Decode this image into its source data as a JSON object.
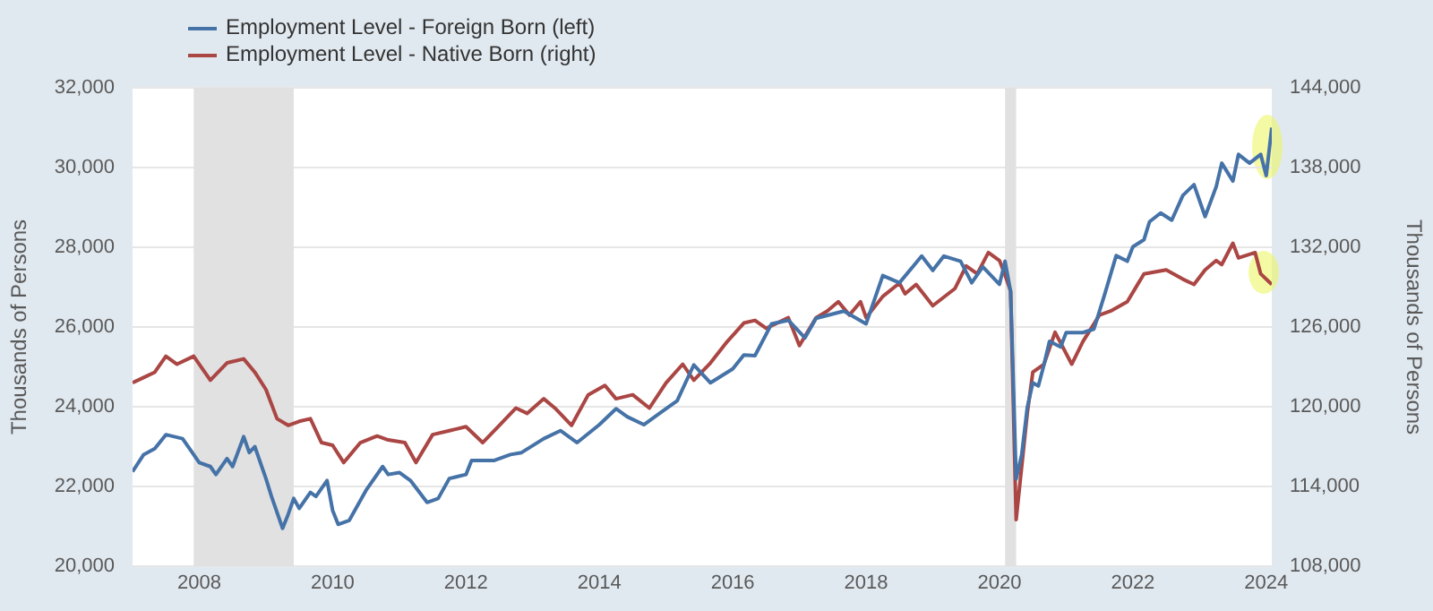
{
  "chart_data": {
    "type": "line",
    "xlim": [
      "2007-01",
      "2024-02"
    ],
    "xticks": [
      "2008",
      "2010",
      "2012",
      "2014",
      "2016",
      "2018",
      "2020",
      "2022",
      "2024"
    ],
    "ylim": [
      20000,
      32000
    ],
    "yticks": [
      {
        "value": 20000,
        "label": "20,000"
      },
      {
        "value": 22000,
        "label": "22,000"
      },
      {
        "value": 24000,
        "label": "24,000"
      },
      {
        "value": 26000,
        "label": "26,000"
      },
      {
        "value": 28000,
        "label": "28,000"
      },
      {
        "value": 30000,
        "label": "30,000"
      },
      {
        "value": 32000,
        "label": "32,000"
      }
    ],
    "y2lim": [
      108000,
      144000
    ],
    "y2ticks": [
      {
        "value": 108000,
        "label": "108,000"
      },
      {
        "value": 114000,
        "label": "114,000"
      },
      {
        "value": 120000,
        "label": "120,000"
      },
      {
        "value": 126000,
        "label": "126,000"
      },
      {
        "value": 132000,
        "label": "132,000"
      },
      {
        "value": 138000,
        "label": "138,000"
      },
      {
        "value": 144000,
        "label": "144,000"
      }
    ],
    "ylabel": "Thousands of Persons",
    "y2label": "Thousands of Persons",
    "grid": "y",
    "legend": "top left",
    "bands": [
      {
        "axis": "x",
        "from": "2007-12",
        "to": "2009-06",
        "color": "#e1e1e1"
      },
      {
        "axis": "x",
        "from": "2020-02",
        "to": "2020-04",
        "color": "#e1e1e1"
      }
    ],
    "series": [
      {
        "name": "Employment Level - Foreign Born (left)",
        "color": "#4572a7",
        "axis": "y",
        "x": [
          "2007-01",
          "2007-03",
          "2007-05",
          "2007-07",
          "2007-10",
          "2008-01",
          "2008-03",
          "2008-04",
          "2008-06",
          "2008-07",
          "2008-09",
          "2008-10",
          "2008-11",
          "2009-01",
          "2009-02",
          "2009-04",
          "2009-05",
          "2009-06",
          "2009-07",
          "2009-09",
          "2009-10",
          "2009-12",
          "2010-01",
          "2010-02",
          "2010-04",
          "2010-07",
          "2010-10",
          "2010-11",
          "2011-01",
          "2011-03",
          "2011-06",
          "2011-08",
          "2011-10",
          "2012-01",
          "2012-02",
          "2012-06",
          "2012-09",
          "2012-11",
          "2013-03",
          "2013-06",
          "2013-09",
          "2014-01",
          "2014-04",
          "2014-06",
          "2014-09",
          "2014-12",
          "2015-03",
          "2015-06",
          "2015-09",
          "2016-01",
          "2016-03",
          "2016-05",
          "2016-08",
          "2016-11",
          "2017-02",
          "2017-04",
          "2017-09",
          "2018-01",
          "2018-04",
          "2018-07",
          "2018-11",
          "2019-01",
          "2019-03",
          "2019-06",
          "2019-08",
          "2019-10",
          "2020-01",
          "2020-02",
          "2020-03",
          "2020-04",
          "2020-05",
          "2020-06",
          "2020-07",
          "2020-08",
          "2020-09",
          "2020-10",
          "2020-12",
          "2021-01",
          "2021-04",
          "2021-06",
          "2021-08",
          "2021-10",
          "2021-12",
          "2022-01",
          "2022-03",
          "2022-04",
          "2022-06",
          "2022-08",
          "2022-10",
          "2022-12",
          "2023-02",
          "2023-04",
          "2023-05",
          "2023-07",
          "2023-08",
          "2023-10",
          "2023-12",
          "2024-01",
          "2024-02"
        ],
        "values": [
          22370,
          22800,
          22950,
          23300,
          23200,
          22600,
          22500,
          22300,
          22700,
          22500,
          23250,
          22850,
          23000,
          22200,
          21750,
          20950,
          21300,
          21700,
          21450,
          21850,
          21750,
          22150,
          21400,
          21050,
          21150,
          21900,
          22500,
          22300,
          22350,
          22150,
          21600,
          21700,
          22200,
          22300,
          22650,
          22650,
          22800,
          22850,
          23200,
          23400,
          23100,
          23550,
          23950,
          23750,
          23550,
          23850,
          24150,
          25050,
          24600,
          24950,
          25300,
          25280,
          26080,
          26170,
          25730,
          26220,
          26400,
          26080,
          27290,
          27110,
          27780,
          27420,
          27780,
          27650,
          27110,
          27510,
          27070,
          27650,
          26890,
          22190,
          22800,
          23980,
          24600,
          24520,
          25050,
          25640,
          25500,
          25860,
          25860,
          25950,
          26850,
          27790,
          27650,
          28010,
          28190,
          28640,
          28860,
          28680,
          29300,
          29570,
          28770,
          29520,
          30110,
          29660,
          30330,
          30110,
          30330,
          29800,
          31000
        ]
      },
      {
        "name": "Employment Level - Native Born (right)",
        "color": "#aa4643",
        "axis": "y2",
        "x": [
          "2007-01",
          "2007-03",
          "2007-05",
          "2007-07",
          "2007-09",
          "2007-12",
          "2008-03",
          "2008-06",
          "2008-09",
          "2008-11",
          "2009-01",
          "2009-03",
          "2009-05",
          "2009-07",
          "2009-09",
          "2009-11",
          "2010-01",
          "2010-03",
          "2010-06",
          "2010-09",
          "2010-11",
          "2011-02",
          "2011-04",
          "2011-07",
          "2011-10",
          "2012-01",
          "2012-04",
          "2012-07",
          "2012-10",
          "2012-12",
          "2013-03",
          "2013-05",
          "2013-08",
          "2013-11",
          "2014-02",
          "2014-04",
          "2014-07",
          "2014-10",
          "2015-01",
          "2015-04",
          "2015-06",
          "2015-09",
          "2015-12",
          "2016-03",
          "2016-05",
          "2016-07",
          "2016-11",
          "2017-01",
          "2017-04",
          "2017-06",
          "2017-08",
          "2017-10",
          "2017-12",
          "2018-01",
          "2018-04",
          "2018-07",
          "2018-08",
          "2018-10",
          "2019-01",
          "2019-05",
          "2019-07",
          "2019-09",
          "2019-11",
          "2020-01",
          "2020-02",
          "2020-03",
          "2020-04",
          "2020-06",
          "2020-07",
          "2020-09",
          "2020-11",
          "2021-02",
          "2021-04",
          "2021-07",
          "2021-09",
          "2021-12",
          "2022-03",
          "2022-07",
          "2022-10",
          "2022-12",
          "2023-02",
          "2023-04",
          "2023-05",
          "2023-07",
          "2023-08",
          "2023-11",
          "2023-12",
          "2024-02"
        ],
        "values": [
          121800,
          122200,
          122600,
          123800,
          123200,
          123800,
          122000,
          123300,
          123600,
          122600,
          121300,
          119100,
          118600,
          118900,
          119100,
          117300,
          117100,
          115800,
          117300,
          117800,
          117500,
          117300,
          115800,
          117900,
          118200,
          118500,
          117300,
          118600,
          119900,
          119500,
          120600,
          119900,
          118600,
          120900,
          121600,
          120600,
          120900,
          119900,
          121800,
          123200,
          122000,
          123300,
          124900,
          126300,
          126500,
          125900,
          126700,
          124600,
          126700,
          127200,
          127900,
          126900,
          127900,
          126700,
          128300,
          129300,
          128500,
          129200,
          127600,
          128900,
          130600,
          130000,
          131600,
          131000,
          129900,
          128700,
          111500,
          119500,
          122600,
          123200,
          125600,
          123200,
          124900,
          126900,
          127200,
          127900,
          130000,
          130300,
          129600,
          129200,
          130300,
          131000,
          130700,
          132300,
          131200,
          131600,
          130000,
          129200
        ]
      }
    ]
  }
}
